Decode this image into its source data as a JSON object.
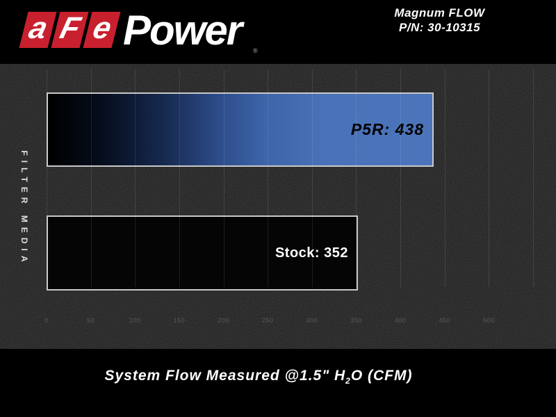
{
  "header": {
    "logo": {
      "letter_blocks": [
        "a",
        "F",
        "e"
      ],
      "wordmark": "Power",
      "registered_mark": "®"
    },
    "product": {
      "line1": "Magnum FLOW",
      "line2": "P/N: 30-10315"
    }
  },
  "colors": {
    "logo_red": "#c8202e",
    "bar_blue_end": "#4a72b8",
    "bar_border": "#c9c9c9",
    "panel_background": "#141414",
    "gridline": "#333333",
    "tick_text": "#5a5a5a"
  },
  "chart_data": {
    "type": "bar",
    "orientation": "horizontal",
    "title": "",
    "xlabel": "System Flow Measured @1.5\" H2O (CFM)",
    "ylabel": "FILTER MEDIA",
    "xlim": [
      0,
      550
    ],
    "grid": true,
    "x_ticks": [
      0,
      50,
      100,
      150,
      200,
      250,
      300,
      350,
      400,
      450,
      500
    ],
    "gridlines_at": [
      0,
      50,
      100,
      150,
      200,
      250,
      300,
      350,
      400,
      450,
      500,
      550
    ],
    "categories": [
      "P5R",
      "Stock"
    ],
    "values": [
      438,
      352
    ],
    "bars": [
      {
        "category": "P5R",
        "value": 438,
        "label": "P5R: 438",
        "fill_style": "blue-gradient",
        "label_color": "#000000"
      },
      {
        "category": "Stock",
        "value": 352,
        "label": "Stock: 352",
        "fill_style": "solid-black",
        "label_color": "#ffffff"
      }
    ]
  },
  "axis": {
    "y_label": "FILTER MEDIA"
  },
  "caption": {
    "pre": "System Flow Measured @1.5\" H",
    "sub": "2",
    "post": "O (CFM)"
  }
}
